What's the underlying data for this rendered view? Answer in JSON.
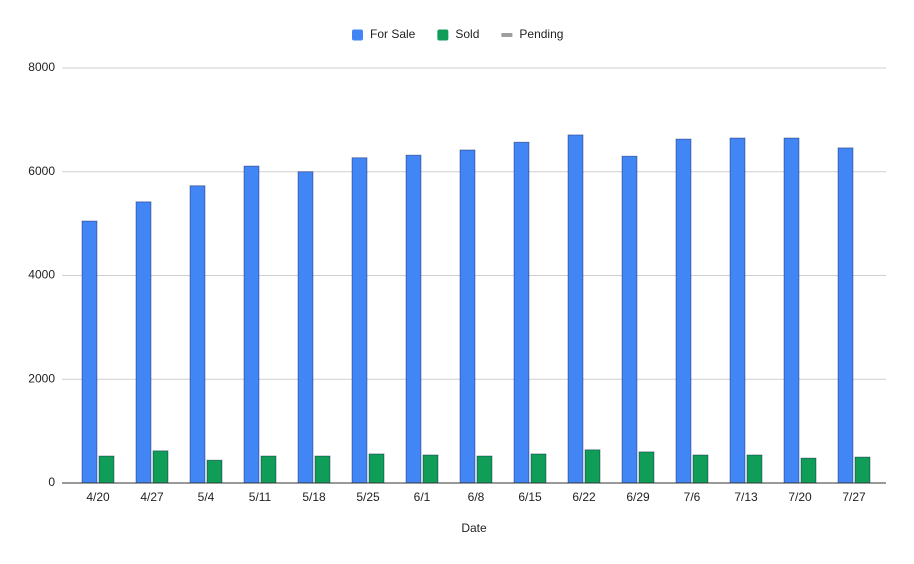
{
  "chart_data": {
    "type": "bar",
    "x_label": "Date",
    "categories": [
      "4/20",
      "4/27",
      "5/4",
      "5/11",
      "5/18",
      "5/25",
      "6/1",
      "6/8",
      "6/15",
      "6/22",
      "6/29",
      "7/6",
      "7/13",
      "7/20",
      "7/27"
    ],
    "series": [
      {
        "name": "For Sale",
        "color": "#4285f4",
        "values": [
          5050,
          5420,
          5730,
          6110,
          6000,
          6270,
          6320,
          6420,
          6570,
          6710,
          6300,
          6630,
          6650,
          6650,
          6460
        ]
      },
      {
        "name": "Sold",
        "color": "#0f9d58",
        "values": [
          520,
          620,
          440,
          520,
          520,
          560,
          540,
          520,
          560,
          640,
          600,
          540,
          540,
          480,
          500
        ]
      },
      {
        "name": "Pending",
        "color": "#9e9e9e",
        "values": [
          null,
          null,
          null,
          null,
          null,
          null,
          null,
          null,
          null,
          null,
          null,
          null,
          null,
          null,
          null
        ]
      }
    ],
    "ylim": [
      0,
      8000
    ],
    "yticks": [
      0,
      2000,
      4000,
      6000,
      8000
    ],
    "grid": true,
    "legend": "top"
  }
}
